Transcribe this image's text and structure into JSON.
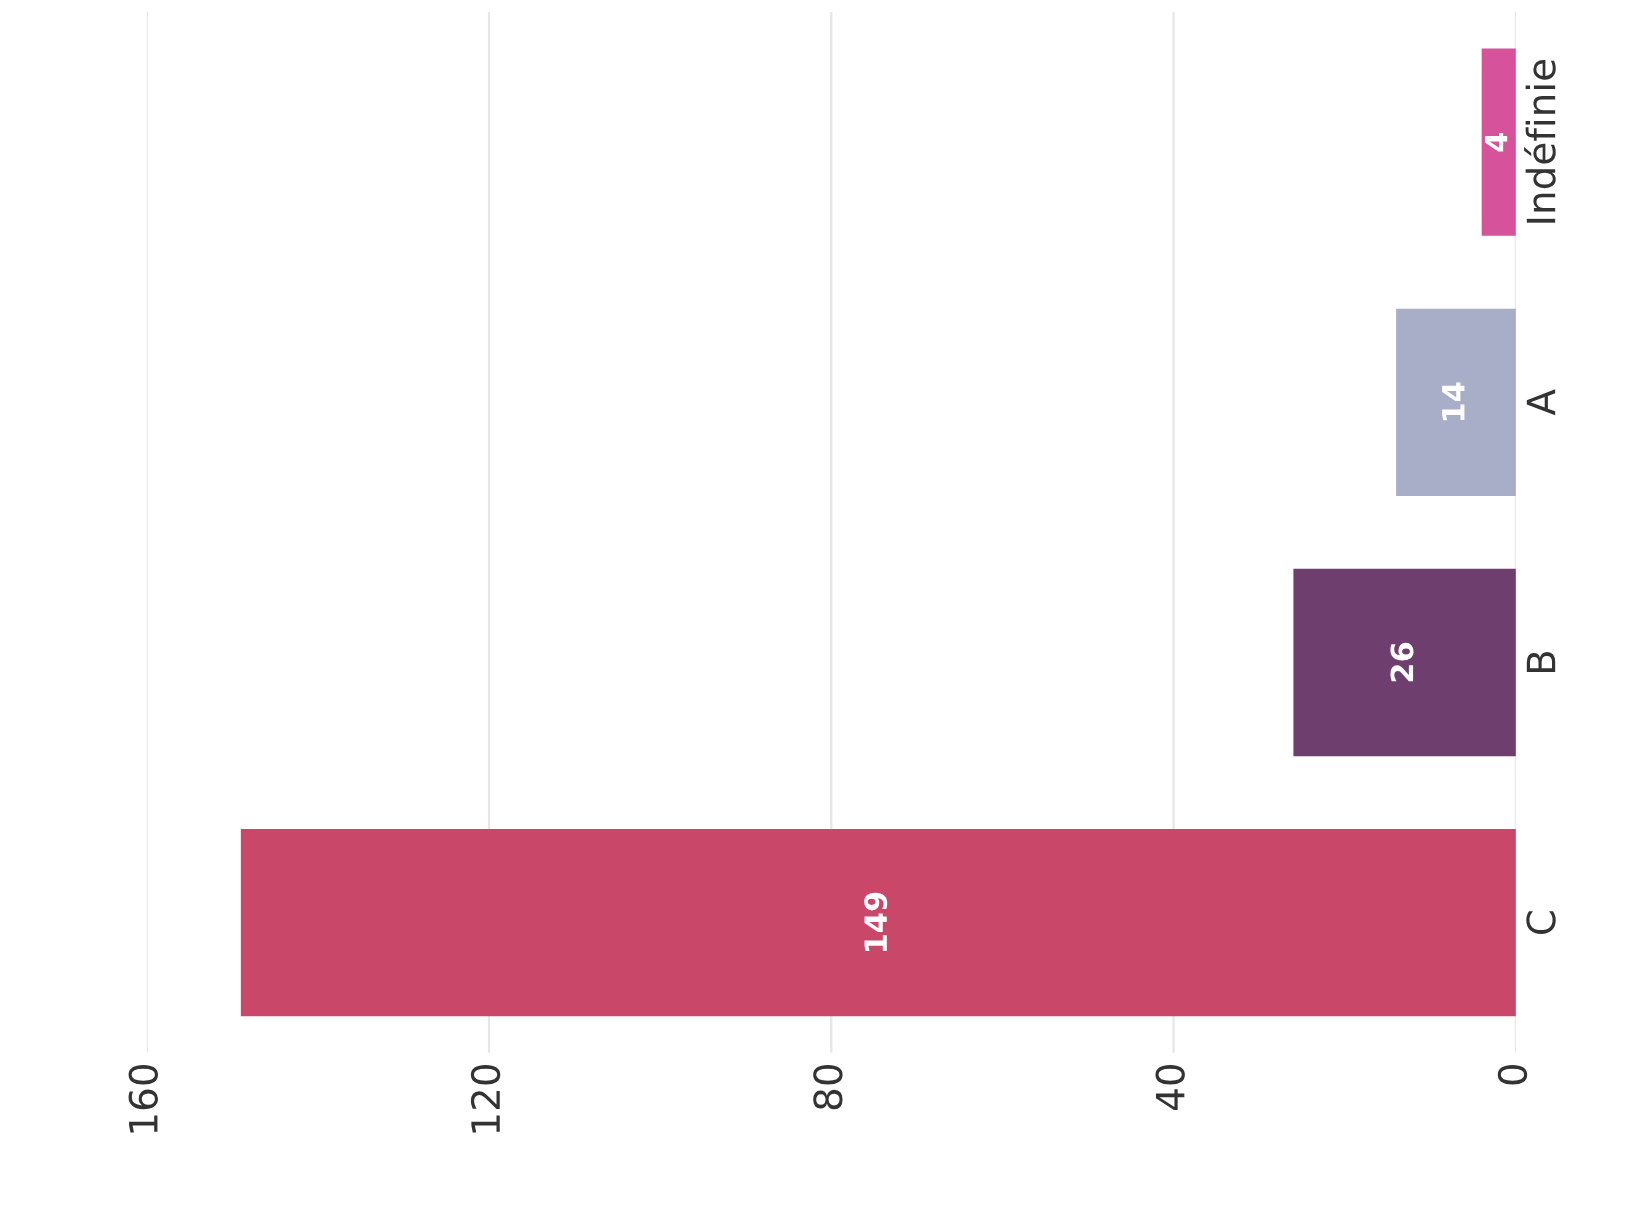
{
  "chart_data": {
    "type": "bar",
    "orientation": "horizontal",
    "categories": [
      "Indéfinie",
      "A",
      "B",
      "C"
    ],
    "values": [
      4,
      14,
      26,
      149
    ],
    "colors": [
      "#d6529a",
      "#a9aec8",
      "#6e3f6e",
      "#c9486a"
    ],
    "xlim": [
      160,
      0
    ],
    "xticks": [
      0,
      40,
      80,
      120,
      160
    ],
    "grid": "x",
    "data_labels": true
  }
}
